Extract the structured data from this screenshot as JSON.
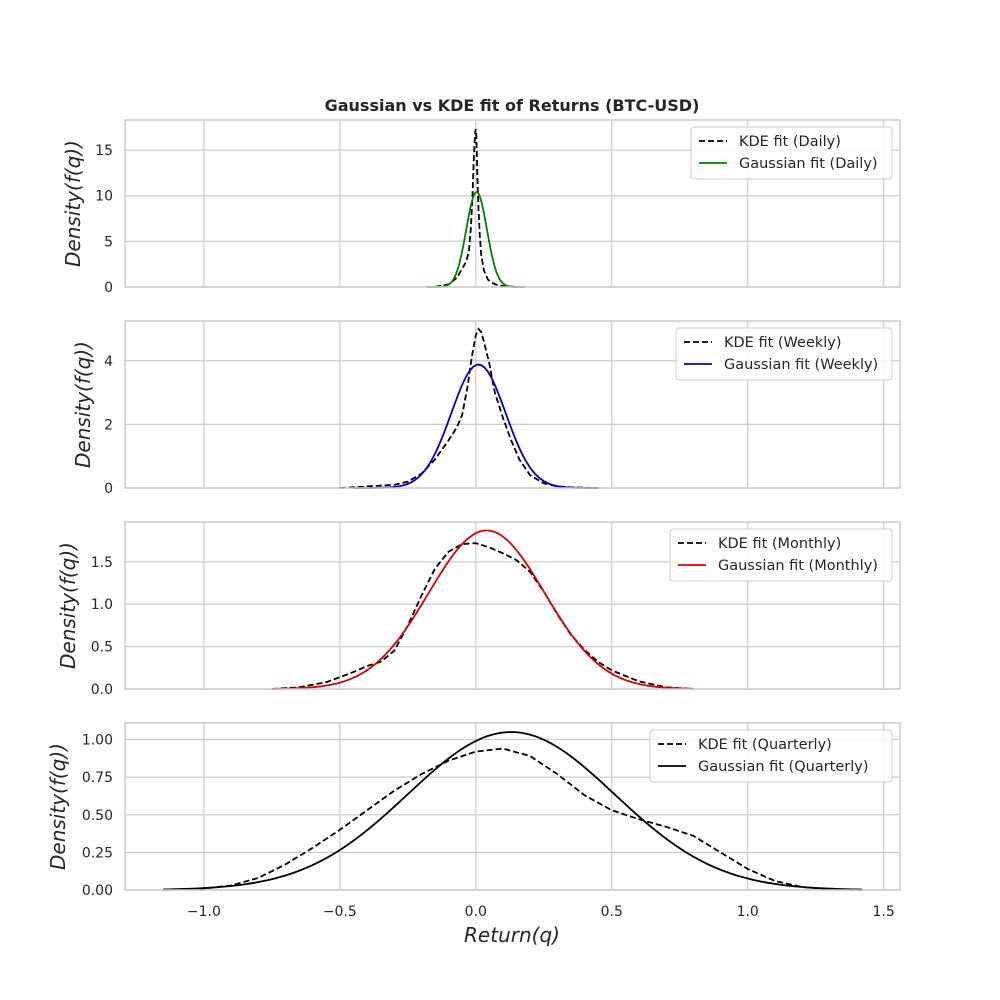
{
  "figure": {
    "title": "Gaussian vs KDE fit of Returns (BTC-USD)",
    "xlabel": "Return(q)",
    "ylabel": "Density(f(q))"
  },
  "chart_data": [
    {
      "type": "line",
      "ylim": [
        0,
        18.3
      ],
      "yticks": [
        0,
        5,
        10,
        15
      ],
      "ytick_labels": [
        "0",
        "5",
        "10",
        "15"
      ],
      "xlim": [
        -1.29,
        1.56
      ],
      "grid": true,
      "legend_position": "top-right",
      "series": [
        {
          "name": "KDE fit (Daily)",
          "style": "dashed",
          "color": "#000000",
          "x": [
            -0.15,
            -0.1,
            -0.07,
            -0.05,
            -0.035,
            -0.025,
            -0.018,
            -0.012,
            -0.008,
            -0.005,
            -0.002,
            0.0,
            0.002,
            0.004,
            0.006,
            0.01,
            0.015,
            0.02,
            0.03,
            0.045,
            0.07,
            0.1,
            0.15
          ],
          "y": [
            0.0,
            0.3,
            1.0,
            2.0,
            2.8,
            4.0,
            6.5,
            10.0,
            13.5,
            15.5,
            17.0,
            17.3,
            16.5,
            14.5,
            12.0,
            8.5,
            5.5,
            3.5,
            1.8,
            0.8,
            0.3,
            0.1,
            0.0
          ]
        },
        {
          "name": "Gaussian fit (Daily)",
          "style": "solid",
          "color": "#008000",
          "mu": 0.003,
          "sigma": 0.038,
          "peak": 10.4,
          "range": [
            -0.18,
            0.18
          ]
        }
      ]
    },
    {
      "type": "line",
      "ylim": [
        0,
        5.25
      ],
      "yticks": [
        0,
        2,
        4
      ],
      "ytick_labels": [
        "0",
        "2",
        "4"
      ],
      "xlim": [
        -1.29,
        1.56
      ],
      "grid": true,
      "legend_position": "top-right",
      "series": [
        {
          "name": "KDE fit (Weekly)",
          "style": "dashed",
          "color": "#000000",
          "x": [
            -0.5,
            -0.4,
            -0.3,
            -0.25,
            -0.2,
            -0.15,
            -0.1,
            -0.07,
            -0.05,
            -0.03,
            -0.015,
            0.0,
            0.01,
            0.02,
            0.03,
            0.05,
            0.07,
            0.1,
            0.13,
            0.16,
            0.2,
            0.25,
            0.3,
            0.35,
            0.45
          ],
          "y": [
            0.0,
            0.05,
            0.1,
            0.2,
            0.45,
            0.9,
            1.5,
            1.9,
            2.3,
            3.2,
            4.1,
            4.8,
            5.0,
            4.9,
            4.6,
            3.9,
            3.0,
            2.2,
            1.5,
            0.9,
            0.4,
            0.15,
            0.05,
            0.02,
            0.0
          ]
        },
        {
          "name": "Gaussian fit (Weekly)",
          "style": "solid",
          "color": "#0000CC",
          "mu": 0.01,
          "sigma": 0.1,
          "peak": 3.88,
          "range": [
            -0.45,
            0.45
          ]
        }
      ]
    },
    {
      "type": "line",
      "ylim": [
        0,
        1.97
      ],
      "yticks": [
        0,
        0.5,
        1.0,
        1.5
      ],
      "ytick_labels": [
        "0.0",
        "0.5",
        "1.0",
        "1.5"
      ],
      "xlim": [
        -1.29,
        1.56
      ],
      "grid": true,
      "legend_position": "top-right",
      "series": [
        {
          "name": "KDE fit (Monthly)",
          "style": "dashed",
          "color": "#000000",
          "x": [
            -0.75,
            -0.65,
            -0.55,
            -0.45,
            -0.4,
            -0.35,
            -0.3,
            -0.25,
            -0.2,
            -0.15,
            -0.1,
            -0.05,
            0.0,
            0.05,
            0.1,
            0.15,
            0.2,
            0.25,
            0.3,
            0.35,
            0.4,
            0.45,
            0.5,
            0.6,
            0.7,
            0.8
          ],
          "y": [
            0.0,
            0.02,
            0.08,
            0.2,
            0.27,
            0.32,
            0.45,
            0.75,
            1.1,
            1.42,
            1.62,
            1.71,
            1.72,
            1.67,
            1.6,
            1.52,
            1.38,
            1.15,
            0.88,
            0.64,
            0.46,
            0.32,
            0.22,
            0.09,
            0.02,
            0.0
          ]
        },
        {
          "name": "Gaussian fit (Monthly)",
          "style": "solid",
          "color": "#DD0000",
          "mu": 0.04,
          "sigma": 0.213,
          "peak": 1.87,
          "range": [
            -0.75,
            0.8
          ]
        }
      ]
    },
    {
      "type": "line",
      "ylim": [
        0,
        1.11
      ],
      "yticks": [
        0,
        0.25,
        0.5,
        0.75,
        1.0
      ],
      "ytick_labels": [
        "0.00",
        "0.25",
        "0.50",
        "0.75",
        "1.00"
      ],
      "xlim": [
        -1.29,
        1.56
      ],
      "xticks": [
        -1.0,
        -0.5,
        0.0,
        0.5,
        1.0,
        1.5
      ],
      "xtick_labels": [
        "−1.0",
        "−0.5",
        "0.0",
        "0.5",
        "1.0",
        "1.5"
      ],
      "grid": true,
      "legend_position": "top-right",
      "series": [
        {
          "name": "KDE fit (Quarterly)",
          "style": "dashed",
          "color": "#000000",
          "x": [
            -1.15,
            -1.0,
            -0.9,
            -0.8,
            -0.7,
            -0.6,
            -0.5,
            -0.4,
            -0.3,
            -0.2,
            -0.1,
            0.0,
            0.1,
            0.2,
            0.3,
            0.4,
            0.5,
            0.6,
            0.7,
            0.8,
            0.9,
            1.0,
            1.1,
            1.2,
            1.3,
            1.42
          ],
          "y": [
            0.0,
            0.01,
            0.03,
            0.08,
            0.17,
            0.28,
            0.4,
            0.53,
            0.66,
            0.77,
            0.86,
            0.92,
            0.94,
            0.89,
            0.77,
            0.63,
            0.53,
            0.47,
            0.42,
            0.36,
            0.25,
            0.14,
            0.06,
            0.02,
            0.005,
            0.0
          ]
        },
        {
          "name": "Gaussian fit (Quarterly)",
          "style": "solid",
          "color": "#000000",
          "mu": 0.13,
          "sigma": 0.38,
          "peak": 1.05,
          "range": [
            -1.15,
            1.42
          ]
        }
      ]
    }
  ]
}
